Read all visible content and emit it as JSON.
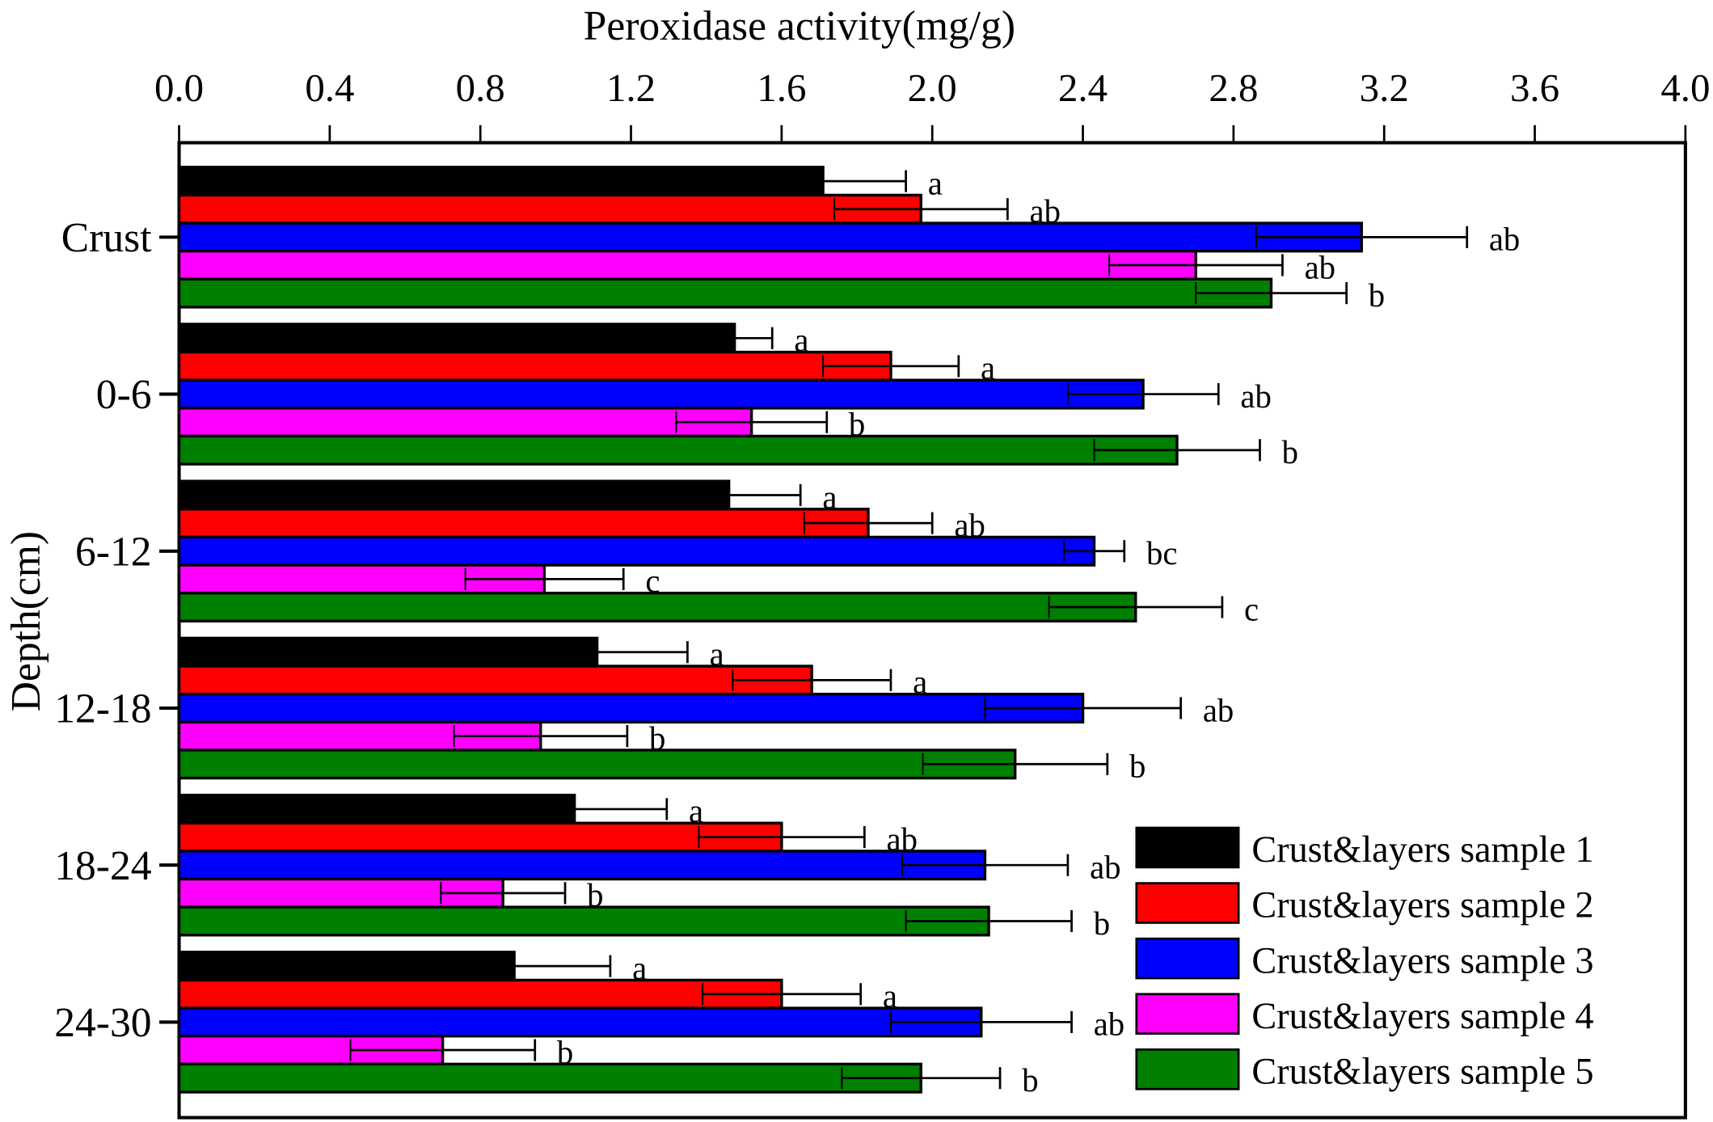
{
  "chart_data": {
    "type": "bar",
    "orientation": "horizontal",
    "title": "",
    "xlabel": "Peroxidase activity(mg/g)",
    "ylabel": "Depth(cm)",
    "xlim": [
      0,
      4.0
    ],
    "xticks": [
      "0.0",
      "0.4",
      "0.8",
      "1.2",
      "1.6",
      "2.0",
      "2.4",
      "2.8",
      "3.2",
      "3.6",
      "4.0"
    ],
    "x_axis_position": "top",
    "grid": false,
    "legend_position": "bottom-right",
    "categories": [
      "Crust",
      "0-6",
      "6-12",
      "12-18",
      "18-24",
      "24-30"
    ],
    "series": [
      {
        "name": "Crust&layers sample 1",
        "color": "#000000",
        "values": [
          1.71,
          1.475,
          1.46,
          1.11,
          1.05,
          0.89
        ],
        "errors": [
          0.22,
          0.1,
          0.19,
          0.24,
          0.245,
          0.255
        ],
        "letters": [
          "a",
          "a",
          "a",
          "a",
          "a",
          "a"
        ]
      },
      {
        "name": "Crust&layers sample 2",
        "color": "#ff0000",
        "values": [
          1.97,
          1.89,
          1.83,
          1.68,
          1.6,
          1.6
        ],
        "errors": [
          0.23,
          0.18,
          0.17,
          0.21,
          0.22,
          0.21
        ],
        "letters": [
          "ab",
          "a",
          "ab",
          "a",
          "ab",
          "a"
        ]
      },
      {
        "name": "Crust&layers sample 3",
        "color": "#0000ff",
        "values": [
          3.14,
          2.56,
          2.43,
          2.4,
          2.14,
          2.13
        ],
        "errors": [
          0.28,
          0.2,
          0.08,
          0.26,
          0.22,
          0.24
        ],
        "letters": [
          "ab",
          "ab",
          "bc",
          "ab",
          "ab",
          "ab"
        ]
      },
      {
        "name": "Crust&layers sample 4",
        "color": "#ff00ff",
        "values": [
          2.7,
          1.52,
          0.97,
          0.96,
          0.86,
          0.7
        ],
        "errors": [
          0.23,
          0.2,
          0.21,
          0.23,
          0.165,
          0.245
        ],
        "letters": [
          "ab",
          "b",
          "c",
          "b",
          "b",
          "b"
        ]
      },
      {
        "name": "Crust&layers sample 5",
        "color": "#008000",
        "values": [
          2.9,
          2.65,
          2.54,
          2.22,
          2.15,
          1.97
        ],
        "errors": [
          0.2,
          0.22,
          0.23,
          0.245,
          0.22,
          0.21
        ],
        "letters": [
          "b",
          "b",
          "c",
          "b",
          "b",
          "b"
        ]
      }
    ]
  }
}
